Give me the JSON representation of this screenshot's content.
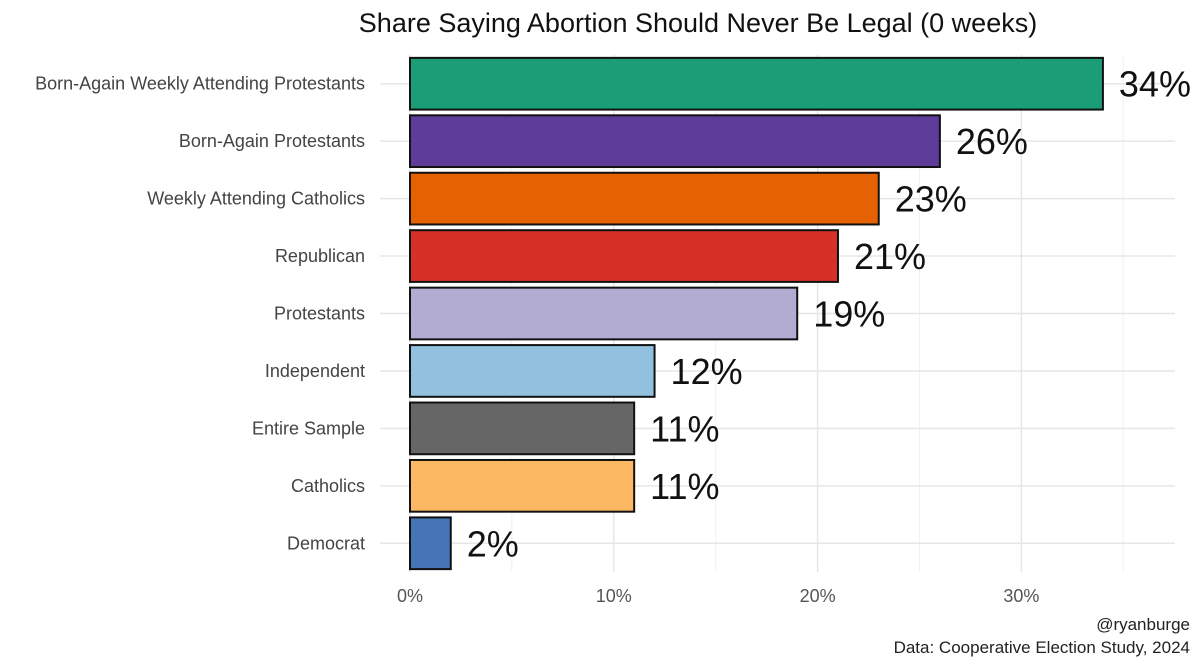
{
  "chart_data": {
    "type": "bar",
    "orientation": "horizontal",
    "title": "Share Saying Abortion Should Never Be Legal (0 weeks)",
    "categories": [
      "Born-Again Weekly Attending Protestants",
      "Born-Again Protestants",
      "Weekly Attending Catholics",
      "Republican",
      "Protestants",
      "Independent",
      "Entire Sample",
      "Catholics",
      "Democrat"
    ],
    "values": [
      34,
      26,
      23,
      21,
      19,
      12,
      11,
      11,
      2
    ],
    "value_labels": [
      "34%",
      "26%",
      "23%",
      "21%",
      "19%",
      "12%",
      "11%",
      "11%",
      "2%"
    ],
    "colors": [
      "#1b9e77",
      "#5e3c99",
      "#e66101",
      "#d73027",
      "#b2abd2",
      "#92c0df",
      "#666666",
      "#fdb863",
      "#4575b4"
    ],
    "x_ticks": [
      0,
      10,
      20,
      30
    ],
    "x_tick_labels": [
      "0%",
      "10%",
      "20%",
      "30%"
    ],
    "xlim": [
      0,
      37.5
    ],
    "xlabel": "",
    "ylabel": "",
    "grid": true,
    "legend": "none"
  },
  "caption": {
    "author": "@ryanburge",
    "source": "Data: Cooperative Election Study, 2024"
  }
}
